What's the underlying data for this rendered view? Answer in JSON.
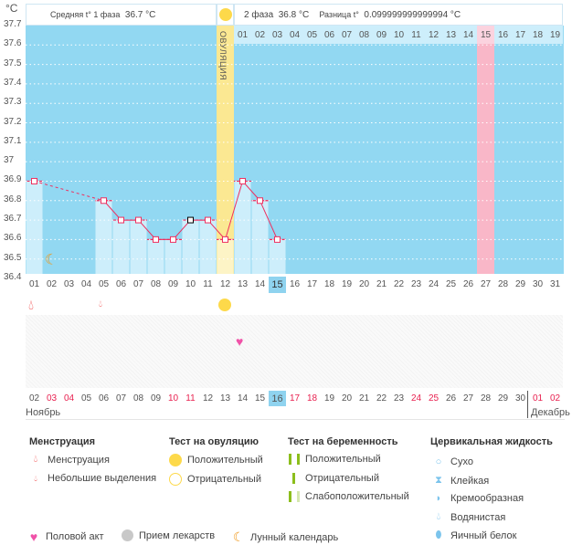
{
  "unit_label": "°C",
  "header": {
    "phase1_label": "Средняя t° 1 фаза",
    "phase1_value": "36.7 °C",
    "phase2_label": "2 фаза",
    "phase2_value": "36.8 °C",
    "diff_label": "Разница t°",
    "diff_value": "0.099999999999994 °C",
    "ovulation_label": "ОВУЛЯЦИЯ"
  },
  "phase2_days": [
    "01",
    "02",
    "03",
    "04",
    "05",
    "06",
    "07",
    "08",
    "09",
    "10",
    "11",
    "12",
    "13",
    "14",
    "15",
    "16",
    "17",
    "18",
    "19"
  ],
  "phase2_highlight_index": 14,
  "colors": {
    "chart_bg": "#92d8f2",
    "bar": "#cdeefb",
    "line": "#ee2f5f",
    "ovulation": "#fbe892",
    "highlight": "#f9b7c8",
    "accent_today": "#8fd3ef"
  },
  "chart_data": {
    "type": "line",
    "ylabel": "°C",
    "ylim": [
      36.4,
      37.7
    ],
    "yticks": [
      "37.7",
      "37.6",
      "37.5",
      "37.4",
      "37.3",
      "37.2",
      "37.1",
      "37",
      "36.9",
      "36.8",
      "36.7",
      "36.6",
      "36.5",
      "36.4"
    ],
    "cycle_days": [
      "01",
      "02",
      "03",
      "04",
      "05",
      "06",
      "07",
      "08",
      "09",
      "10",
      "11",
      "12",
      "13",
      "14",
      "15",
      "16",
      "17",
      "18",
      "19",
      "20",
      "21",
      "22",
      "23",
      "24",
      "25",
      "26",
      "27",
      "28",
      "29",
      "30",
      "31"
    ],
    "temperatures": [
      36.9,
      null,
      null,
      null,
      36.8,
      36.7,
      36.7,
      36.6,
      36.6,
      36.7,
      36.7,
      36.6,
      36.9,
      36.8,
      36.6
    ],
    "ovulation_day": 12,
    "current_day": 15,
    "highlight_day": 27
  },
  "dates": [
    {
      "d": "02"
    },
    {
      "d": "03",
      "red": true
    },
    {
      "d": "04",
      "red": true
    },
    {
      "d": "05"
    },
    {
      "d": "06"
    },
    {
      "d": "07"
    },
    {
      "d": "08"
    },
    {
      "d": "09"
    },
    {
      "d": "10",
      "red": true
    },
    {
      "d": "11",
      "red": true
    },
    {
      "d": "12"
    },
    {
      "d": "13"
    },
    {
      "d": "14"
    },
    {
      "d": "15"
    },
    {
      "d": "16",
      "today": true
    },
    {
      "d": "17",
      "red": true
    },
    {
      "d": "18",
      "red": true
    },
    {
      "d": "19"
    },
    {
      "d": "20"
    },
    {
      "d": "21"
    },
    {
      "d": "22"
    },
    {
      "d": "23"
    },
    {
      "d": "24",
      "red": true
    },
    {
      "d": "25",
      "red": true
    },
    {
      "d": "26"
    },
    {
      "d": "27"
    },
    {
      "d": "28"
    },
    {
      "d": "29"
    },
    {
      "d": "30"
    },
    {
      "d": "01",
      "red": true
    },
    {
      "d": "02",
      "red": true
    }
  ],
  "months": {
    "m1": "Ноябрь",
    "m2": "Декабрь"
  },
  "legend": {
    "menstruation": {
      "title": "Менструация",
      "items": [
        "Менструация",
        "Небольшие выделения"
      ]
    },
    "ovulation_test": {
      "title": "Тест на овуляцию",
      "items": [
        "Положительный",
        "Отрицательный"
      ]
    },
    "pregnancy_test": {
      "title": "Тест на беременность",
      "items": [
        "Положительный",
        "Отрицательный",
        "Слабоположительный"
      ]
    },
    "cervical": {
      "title": "Цервикальная жидкость",
      "items": [
        "Сухо",
        "Клейкая",
        "Кремообразная",
        "Водянистая",
        "Яичный белок"
      ]
    },
    "other": [
      "Половой акт",
      "Прием лекарств",
      "Лунный календарь"
    ]
  }
}
